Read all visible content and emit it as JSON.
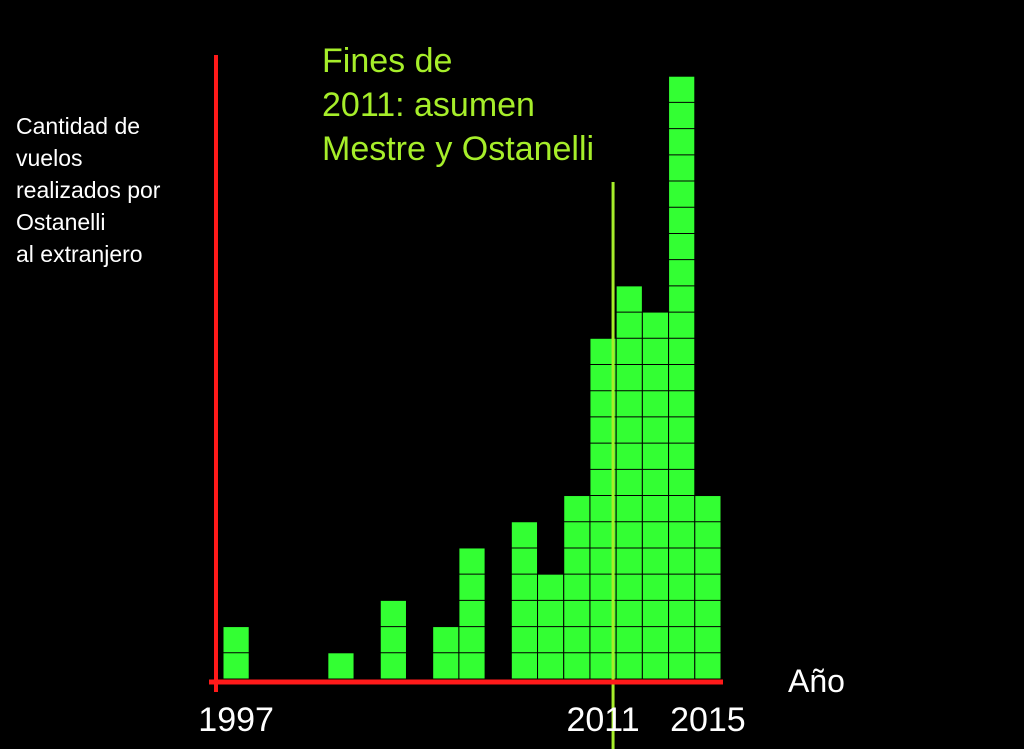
{
  "chart_data": {
    "type": "bar",
    "ylabel": [
      "Cantidad de",
      "vuelos",
      "realizados por",
      "Ostanelli",
      "al extranjero"
    ],
    "xlabel": "Año",
    "x": [
      1997,
      1998,
      1999,
      2000,
      2001,
      2002,
      2003,
      2004,
      2005,
      2006,
      2007,
      2008,
      2009,
      2010,
      2011,
      2012,
      2013,
      2014,
      2015
    ],
    "values": [
      2,
      0,
      0,
      0,
      1,
      0,
      3,
      0,
      2,
      5,
      0,
      6,
      4,
      7,
      13,
      15,
      14,
      23,
      7
    ],
    "color": "#33ff33",
    "axis_color": "#ff1a1a",
    "xlim": [
      1996.5,
      2015.5
    ],
    "xticks": [
      1997,
      2011,
      2015
    ],
    "ylim": [
      0,
      24
    ],
    "annotation": {
      "text": [
        "Fines de",
        "2011: asumen",
        "Mestre y Ostanelli"
      ],
      "x": 2011,
      "color": "#a6ee2a"
    }
  }
}
